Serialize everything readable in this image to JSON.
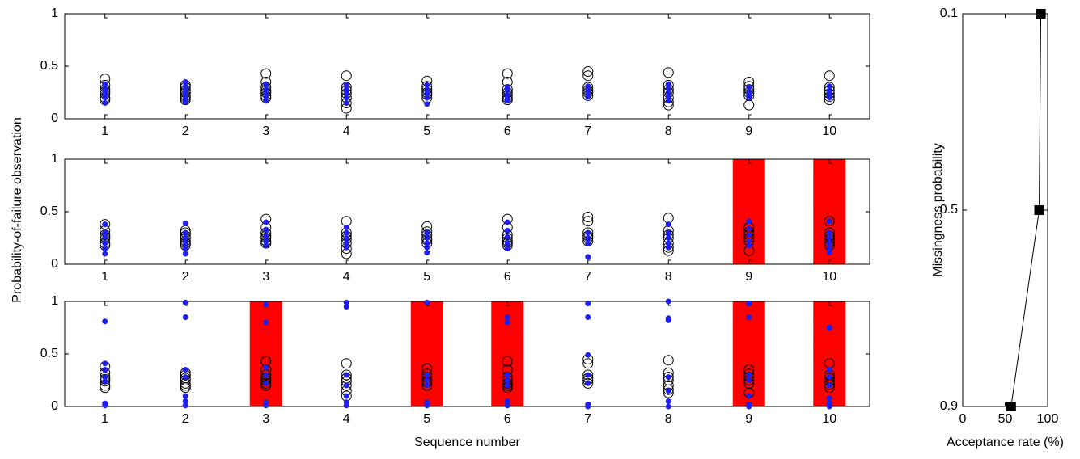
{
  "chart_data": [
    {
      "type": "scatter",
      "ylabel": "Probability-of-failure observation",
      "categories": [
        1,
        2,
        3,
        4,
        5,
        6,
        7,
        8,
        9,
        10
      ],
      "ylim": [
        0,
        1
      ],
      "yticks": [
        0,
        0.5,
        1
      ],
      "flagged": [
        false,
        false,
        false,
        false,
        false,
        false,
        false,
        false,
        false,
        false
      ],
      "open_color": "#000000",
      "filled_color": "#1f1fe6",
      "flag_color": "#ff0000",
      "open_values": [
        [
          0.38,
          0.32,
          0.28,
          0.26,
          0.24,
          0.2,
          0.18
        ],
        [
          0.32,
          0.3,
          0.27,
          0.25,
          0.22,
          0.2,
          0.18
        ],
        [
          0.43,
          0.35,
          0.3,
          0.27,
          0.25,
          0.22,
          0.2
        ],
        [
          0.41,
          0.3,
          0.27,
          0.24,
          0.2,
          0.15,
          0.1
        ],
        [
          0.36,
          0.31,
          0.28,
          0.25,
          0.23,
          0.2
        ],
        [
          0.43,
          0.35,
          0.28,
          0.25,
          0.22,
          0.2,
          0.18
        ],
        [
          0.45,
          0.41,
          0.3,
          0.27,
          0.25,
          0.22
        ],
        [
          0.44,
          0.32,
          0.28,
          0.25,
          0.2,
          0.16,
          0.13
        ],
        [
          0.35,
          0.31,
          0.28,
          0.25,
          0.22,
          0.13
        ],
        [
          0.41,
          0.3,
          0.27,
          0.24,
          0.21,
          0.18
        ]
      ],
      "filled_values": [
        [
          0.33,
          0.29,
          0.26,
          0.23,
          0.2,
          0.15
        ],
        [
          0.35,
          0.31,
          0.28,
          0.24,
          0.2,
          0.16
        ],
        [
          0.33,
          0.28,
          0.25,
          0.21,
          0.17
        ],
        [
          0.32,
          0.28,
          0.24,
          0.2,
          0.15
        ],
        [
          0.32,
          0.27,
          0.24,
          0.2,
          0.14
        ],
        [
          0.3,
          0.27,
          0.23,
          0.2,
          0.17
        ],
        [
          0.31,
          0.27,
          0.24,
          0.21
        ],
        [
          0.33,
          0.29,
          0.25,
          0.21,
          0.17
        ],
        [
          0.3,
          0.26,
          0.23,
          0.2
        ],
        [
          0.31,
          0.27,
          0.24,
          0.2
        ]
      ]
    },
    {
      "type": "scatter",
      "categories": [
        1,
        2,
        3,
        4,
        5,
        6,
        7,
        8,
        9,
        10
      ],
      "ylim": [
        0,
        1
      ],
      "yticks": [
        0,
        0.5,
        1
      ],
      "flagged": [
        false,
        false,
        false,
        false,
        false,
        false,
        false,
        false,
        true,
        true
      ],
      "open_color": "#000000",
      "filled_color": "#1f1fe6",
      "flag_color": "#ff0000",
      "open_values": [
        [
          0.38,
          0.32,
          0.28,
          0.26,
          0.24,
          0.2,
          0.18
        ],
        [
          0.32,
          0.3,
          0.27,
          0.25,
          0.22,
          0.2,
          0.18
        ],
        [
          0.43,
          0.35,
          0.3,
          0.27,
          0.25,
          0.22,
          0.2
        ],
        [
          0.41,
          0.3,
          0.27,
          0.24,
          0.2,
          0.15,
          0.1
        ],
        [
          0.36,
          0.31,
          0.28,
          0.25,
          0.23,
          0.2
        ],
        [
          0.43,
          0.35,
          0.28,
          0.25,
          0.22,
          0.2,
          0.18
        ],
        [
          0.45,
          0.41,
          0.3,
          0.27,
          0.25,
          0.22
        ],
        [
          0.44,
          0.32,
          0.28,
          0.25,
          0.2,
          0.16,
          0.13
        ],
        [
          0.35,
          0.31,
          0.28,
          0.25,
          0.22,
          0.13
        ],
        [
          0.41,
          0.3,
          0.27,
          0.24,
          0.21,
          0.18
        ]
      ],
      "filled_values": [
        [
          0.38,
          0.3,
          0.26,
          0.2,
          0.15,
          0.1
        ],
        [
          0.39,
          0.3,
          0.25,
          0.2,
          0.15,
          0.1
        ],
        [
          0.4,
          0.33,
          0.27,
          0.22,
          0.18
        ],
        [
          0.35,
          0.3,
          0.25,
          0.2,
          0.16
        ],
        [
          0.3,
          0.25,
          0.2,
          0.16,
          0.11
        ],
        [
          0.4,
          0.32,
          0.26,
          0.2,
          0.15
        ],
        [
          0.3,
          0.25,
          0.2,
          0.07
        ],
        [
          0.38,
          0.3,
          0.25,
          0.2,
          0.16
        ],
        [
          0.41,
          0.34,
          0.28,
          0.22,
          0.18
        ],
        [
          0.41,
          0.3,
          0.25,
          0.2,
          0.15,
          0.11
        ]
      ]
    },
    {
      "type": "scatter",
      "xlabel": "Sequence number",
      "categories": [
        1,
        2,
        3,
        4,
        5,
        6,
        7,
        8,
        9,
        10
      ],
      "ylim": [
        0,
        1
      ],
      "yticks": [
        0,
        0.5,
        1
      ],
      "flagged": [
        false,
        false,
        true,
        false,
        true,
        true,
        false,
        false,
        true,
        true
      ],
      "open_color": "#000000",
      "filled_color": "#1f1fe6",
      "flag_color": "#ff0000",
      "open_values": [
        [
          0.38,
          0.32,
          0.28,
          0.26,
          0.24,
          0.2,
          0.18
        ],
        [
          0.32,
          0.3,
          0.27,
          0.25,
          0.22,
          0.2,
          0.18
        ],
        [
          0.43,
          0.35,
          0.3,
          0.27,
          0.25,
          0.22,
          0.2
        ],
        [
          0.41,
          0.3,
          0.27,
          0.24,
          0.2,
          0.15,
          0.1
        ],
        [
          0.36,
          0.31,
          0.28,
          0.25,
          0.23,
          0.2
        ],
        [
          0.43,
          0.35,
          0.28,
          0.25,
          0.22,
          0.2,
          0.18
        ],
        [
          0.45,
          0.41,
          0.3,
          0.27,
          0.25,
          0.22
        ],
        [
          0.44,
          0.32,
          0.28,
          0.25,
          0.2,
          0.16,
          0.13
        ],
        [
          0.35,
          0.31,
          0.28,
          0.25,
          0.22,
          0.13
        ],
        [
          0.41,
          0.3,
          0.27,
          0.24,
          0.21,
          0.18
        ]
      ],
      "filled_values": [
        [
          0.81,
          0.41,
          0.35,
          0.28,
          0.24,
          0.03,
          0.01
        ],
        [
          0.99,
          0.85,
          0.35,
          0.28,
          0.1,
          0.05,
          0.01
        ],
        [
          0.97,
          0.8,
          0.37,
          0.3,
          0.22,
          0.04,
          0.01
        ],
        [
          0.99,
          0.95,
          0.3,
          0.2,
          0.1,
          0.04,
          0.01
        ],
        [
          0.99,
          0.3,
          0.25,
          0.2,
          0.04,
          0.01
        ],
        [
          0.85,
          0.8,
          0.3,
          0.25,
          0.2,
          0.05,
          0.01
        ],
        [
          0.98,
          0.85,
          0.49,
          0.3,
          0.22,
          0.02,
          0
        ],
        [
          1,
          0.84,
          0.82,
          0.28,
          0.15,
          0.05,
          0
        ],
        [
          0.98,
          0.85,
          0.3,
          0.25,
          0.1,
          0.02,
          0
        ],
        [
          0.75,
          0.35,
          0.28,
          0.2,
          0.08,
          0.03,
          0
        ]
      ]
    },
    {
      "type": "line",
      "xlabel": "Acceptance rate (%)",
      "ylabel": "Missingness probability",
      "x": [
        92,
        90,
        57
      ],
      "y": [
        0.1,
        0.5,
        0.9
      ],
      "color": "#000000",
      "xlim": [
        0,
        100
      ],
      "xticks": [
        0,
        50,
        100
      ],
      "ylim": [
        0.1,
        0.9
      ],
      "yticks": [
        0.1,
        0.5,
        0.9
      ],
      "y_reversed": true
    }
  ]
}
